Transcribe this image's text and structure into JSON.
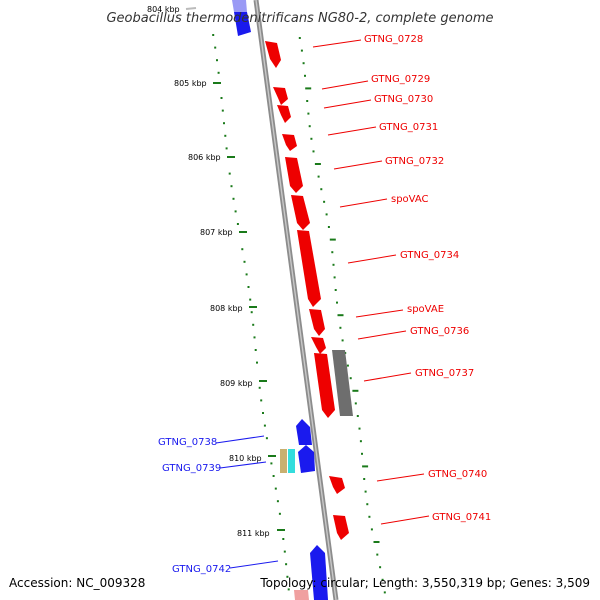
{
  "title": "Geobacillus thermodenitrificans NG80-2, complete genome",
  "accession": "Accession: NC_009328",
  "topology": "Topology: circular; Length: 3,550,319 bp; Genes: 3,509",
  "colors": {
    "forward_gene": "#ee0000",
    "reverse_gene": "#1a1aee",
    "other_feature": "#6e6e6e",
    "gc_skew": "#1a7a1a",
    "backbone": "#8c8c8c"
  },
  "kbp_labels": [
    "804 kbp",
    "805 kbp",
    "806 kbp",
    "807 kbp",
    "808 kbp",
    "809 kbp",
    "810 kbp",
    "811 kbp"
  ],
  "gene_labels": [
    {
      "name": "GTNG_0728",
      "strand": "forward"
    },
    {
      "name": "GTNG_0729",
      "strand": "forward"
    },
    {
      "name": "GTNG_0730",
      "strand": "forward"
    },
    {
      "name": "GTNG_0731",
      "strand": "forward"
    },
    {
      "name": "GTNG_0732",
      "strand": "forward"
    },
    {
      "name": "spoVAC",
      "strand": "forward"
    },
    {
      "name": "GTNG_0734",
      "strand": "forward"
    },
    {
      "name": "spoVAE",
      "strand": "forward"
    },
    {
      "name": "GTNG_0736",
      "strand": "forward"
    },
    {
      "name": "GTNG_0737",
      "strand": "forward"
    },
    {
      "name": "GTNG_0738",
      "strand": "reverse"
    },
    {
      "name": "GTNG_0739",
      "strand": "reverse"
    },
    {
      "name": "GTNG_0740",
      "strand": "forward"
    },
    {
      "name": "GTNG_0741",
      "strand": "forward"
    },
    {
      "name": "GTNG_0742",
      "strand": "reverse"
    }
  ]
}
